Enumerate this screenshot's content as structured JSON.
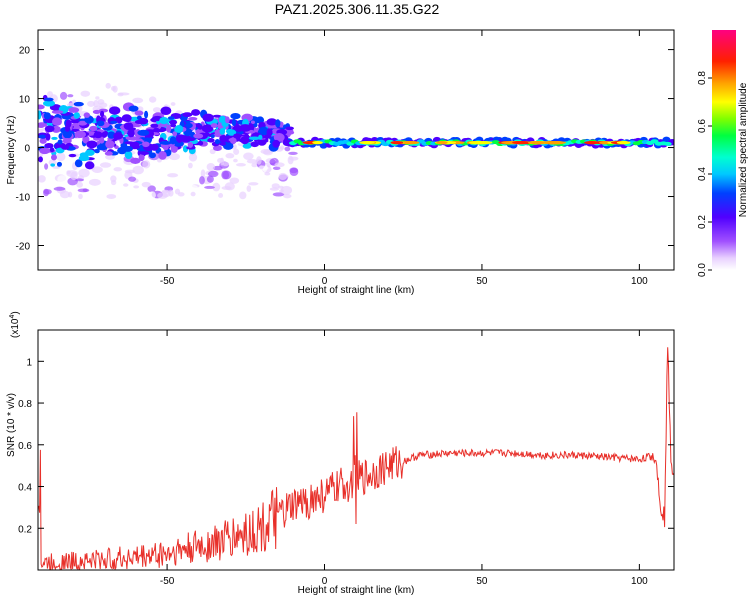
{
  "title": "PAZ1.2025.306.11.35.G22",
  "colors": {
    "snr_line": "#e8302a",
    "axis": "#000000",
    "background": "#ffffff"
  },
  "chart_data": [
    {
      "type": "heatmap",
      "title": "PAZ1.2025.306.11.35.G22",
      "xlabel": "Height of straight line (km)",
      "ylabel": "Frequency (Hz)",
      "xlim": [
        -91,
        111
      ],
      "ylim": [
        -25,
        24
      ],
      "xticks": [
        -50,
        0,
        50,
        100
      ],
      "xtick_labels": [
        "-50",
        "0",
        "50",
        "100"
      ],
      "yticks": [
        -20,
        -10,
        0,
        10,
        20
      ],
      "ytick_labels": [
        "-20",
        "-10",
        "0",
        "10",
        "20"
      ],
      "colorbar": {
        "label": "Normalized spectral amplitude",
        "range": [
          0,
          1
        ],
        "ticks": [
          0.0,
          0.2,
          0.4,
          0.6,
          0.8
        ],
        "tick_labels": [
          "0.0",
          "0.2",
          "0.4",
          "0.6",
          "0.8"
        ],
        "colormap": "rainbow (white → violet → blue → cyan → green → yellow → red → magenta)"
      },
      "description_bands": {
        "broad_noisy_region_km": [
          -91,
          -15
        ],
        "broad_noisy_freq_hz": [
          -5,
          10
        ],
        "narrow_band_region_km": [
          -12,
          111
        ],
        "narrow_band_center_hz": 1,
        "narrow_band_peak_amplitude": 0.9
      }
    },
    {
      "type": "line",
      "xlabel": "Height of straight line (km)",
      "ylabel": "SNR (10 * v/v)",
      "y_multiplier_label": "(x10",
      "y_multiplier_exp": "4",
      "y_multiplier_close": ")",
      "xlim": [
        -91,
        111
      ],
      "ylim": [
        0,
        1.15
      ],
      "xticks": [
        -50,
        0,
        50,
        100
      ],
      "xtick_labels": [
        "-50",
        "0",
        "50",
        "100"
      ],
      "yticks": [
        0.2,
        0.4,
        0.6,
        0.8,
        1.0
      ],
      "ytick_labels": [
        "0.2",
        "0.4",
        "0.6",
        "0.8",
        "1"
      ],
      "series": [
        {
          "name": "SNR",
          "x": [
            -90,
            -80,
            -70,
            -60,
            -50,
            -40,
            -30,
            -20,
            -15,
            -10,
            -5,
            0,
            5,
            10,
            15,
            20,
            25,
            30,
            40,
            50,
            60,
            70,
            80,
            90,
            100,
            105,
            107,
            108,
            109,
            110,
            111
          ],
          "values": [
            0.03,
            0.04,
            0.05,
            0.06,
            0.08,
            0.11,
            0.15,
            0.2,
            0.25,
            0.3,
            0.33,
            0.36,
            0.4,
            0.43,
            0.46,
            0.5,
            0.52,
            0.55,
            0.56,
            0.56,
            0.56,
            0.55,
            0.55,
            0.54,
            0.53,
            0.55,
            0.3,
            0.25,
            1.1,
            0.5,
            0.5
          ]
        }
      ]
    }
  ]
}
